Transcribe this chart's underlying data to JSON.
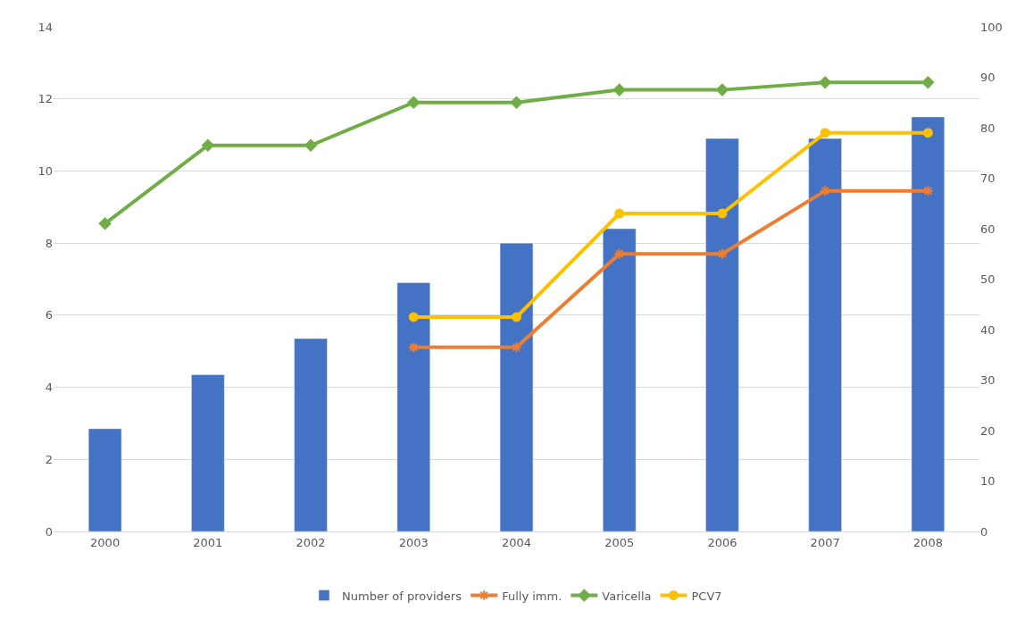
{
  "chart_data": {
    "type": "bar",
    "categories": [
      "2000",
      "2001",
      "2002",
      "2003",
      "2004",
      "2005",
      "2006",
      "2007",
      "2008"
    ],
    "series": [
      {
        "name": "Number of providers",
        "color": "#4472c4",
        "values": [
          2.85,
          4.35,
          5.35,
          6.9,
          8.0,
          8.4,
          10.9,
          10.9,
          11.5
        ]
      },
      {
        "name": "Fully imm.",
        "type": "line",
        "axis": "y2",
        "color": "#ed7d31",
        "marker": "cross",
        "values": [
          null,
          null,
          null,
          36.5,
          36.5,
          55,
          55,
          67.5,
          67.5
        ]
      },
      {
        "name": "Varicella",
        "type": "line",
        "axis": "y2",
        "color": "#70ad47",
        "marker": "diamond",
        "values": [
          61,
          76.5,
          76.5,
          85,
          85,
          87.5,
          87.5,
          89,
          89
        ]
      },
      {
        "name": "PCV7",
        "type": "line",
        "axis": "y2",
        "color": "#ffc000",
        "marker": "circle",
        "values": [
          null,
          null,
          null,
          42.5,
          42.5,
          63,
          63,
          79,
          79
        ]
      }
    ],
    "ylim": [
      0,
      14
    ],
    "yticks": [
      0,
      2,
      4,
      6,
      8,
      10,
      12,
      14
    ],
    "y2lim": [
      0,
      100
    ],
    "y2ticks": [
      0,
      10,
      20,
      30,
      40,
      50,
      60,
      70,
      80,
      90,
      100
    ],
    "grid": "y",
    "legend": "bottom"
  }
}
